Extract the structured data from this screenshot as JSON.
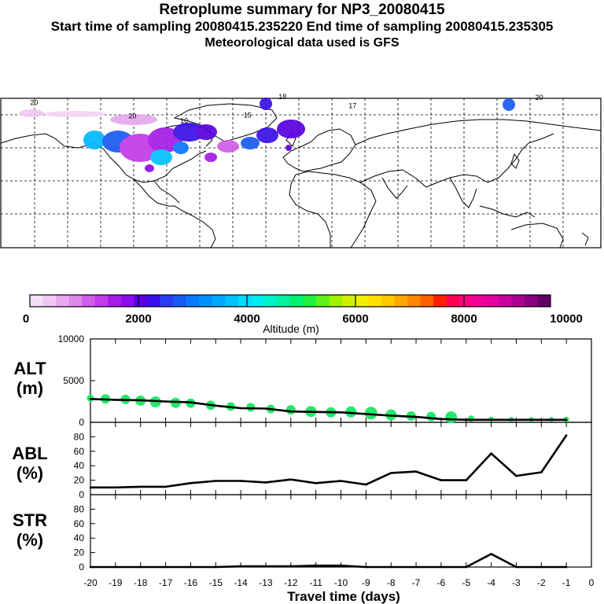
{
  "header": {
    "title": "Retroplume summary for NP3_20080415",
    "sampling": "Start time of sampling 20080415.235220     End time of sampling 20080415.235305",
    "met": "Meteorological data used is GFS"
  },
  "colors": {
    "line": "#000000",
    "alt_markers": "#22e86a",
    "colorbar": [
      "#f6e0f8",
      "#efc8f3",
      "#e6a8ee",
      "#dd88ea",
      "#cf5ee8",
      "#c23be8",
      "#a51ce6",
      "#8a0ce8",
      "#5a00e0",
      "#3a10e8",
      "#2a3cf0",
      "#1a5af0",
      "#0a78ff",
      "#0090ff",
      "#00a8ff",
      "#00c0ff",
      "#00dcff",
      "#00ecf0",
      "#00f0c8",
      "#00f0a0",
      "#00f070",
      "#20f040",
      "#60f020",
      "#a0f000",
      "#d0f000",
      "#f0f000",
      "#ffe000",
      "#ffc800",
      "#ffa800",
      "#ff8800",
      "#ff6000",
      "#ff2000",
      "#ff0050",
      "#ff0080",
      "#f00098",
      "#e000a0",
      "#c8009c",
      "#a80090",
      "#880080",
      "#600060"
    ]
  },
  "colorbar": {
    "label": "Altitude (m)",
    "ticks": [
      "0",
      "2000",
      "4000",
      "6000",
      "8000",
      "10000"
    ]
  },
  "map_labels": [
    {
      "text": "20",
      "lon": -160,
      "lat": 82
    },
    {
      "text": "20",
      "lon": -101,
      "lat": 66
    },
    {
      "text": "20",
      "lon": 143,
      "lat": 88
    },
    {
      "text": "18",
      "lon": -11,
      "lat": 89
    },
    {
      "text": "17",
      "lon": 31,
      "lat": 78
    },
    {
      "text": "15",
      "lon": -32,
      "lat": 67
    },
    {
      "text": "10",
      "lon": -70,
      "lat": 60
    }
  ],
  "panels": {
    "alt": {
      "label1": "ALT",
      "label2": "(m)"
    },
    "abl": {
      "label1": "ABL",
      "label2": "(%)"
    },
    "str": {
      "label1": "STR",
      "label2": "(%)"
    },
    "xlabel": "Travel time (days)"
  },
  "chart_data": [
    {
      "type": "line",
      "name": "ALT",
      "title": "Retroplume summary for NP3_20080415",
      "ylabel": "ALT (m)",
      "ylim": [
        0,
        10000
      ],
      "yticks": [
        "10000",
        "5000",
        "0"
      ],
      "xlim": [
        -20,
        0
      ],
      "xticks": [
        "-20",
        "-19",
        "-18",
        "-17",
        "-16",
        "-15",
        "-14",
        "-13",
        "-12",
        "-11",
        "-10",
        "-9",
        "-8",
        "-7",
        "-6",
        "-5",
        "-4",
        "-3",
        "-2",
        "-1",
        "0"
      ],
      "x": [
        -20,
        -19,
        -18,
        -17,
        -16,
        -15,
        -14,
        -13,
        -12,
        -11,
        -10,
        -9,
        -8,
        -7,
        -6,
        -5,
        -4,
        -3,
        -2,
        -1
      ],
      "values": [
        2800,
        2700,
        2650,
        2500,
        2400,
        2000,
        1700,
        1650,
        1300,
        1250,
        1200,
        1000,
        800,
        650,
        400,
        300,
        300,
        300,
        300,
        300
      ],
      "markers_x": [
        -20,
        -19.4,
        -18.6,
        -18,
        -17.4,
        -16.6,
        -16,
        -15.2,
        -14.4,
        -13.6,
        -12.8,
        -12,
        -11.2,
        -10.4,
        -9.6,
        -8.8,
        -8,
        -7.2,
        -6.4,
        -5.6,
        -4.8,
        -4,
        -3.2,
        -2.4,
        -1.6,
        -1
      ],
      "markers_y": [
        2900,
        2800,
        2750,
        2600,
        2450,
        2350,
        2300,
        2050,
        1900,
        1800,
        1600,
        1500,
        1300,
        1200,
        1250,
        1100,
        900,
        750,
        700,
        600,
        450,
        400,
        350,
        350,
        350,
        350
      ],
      "markers_r": [
        4.5,
        6,
        6,
        6.5,
        7,
        6.5,
        6,
        6,
        5.5,
        5.5,
        5.5,
        6,
        7,
        6.5,
        7,
        8,
        7,
        6,
        6,
        7.5,
        4,
        3,
        3,
        3,
        3,
        3.5
      ]
    },
    {
      "type": "line",
      "name": "ABL",
      "ylabel": "ABL (%)",
      "ylim": [
        0,
        100
      ],
      "yticks": [
        "80",
        "60",
        "40",
        "20",
        "0"
      ],
      "x": [
        -20,
        -19,
        -18,
        -17,
        -16,
        -15,
        -14,
        -13,
        -12,
        -11,
        -10,
        -9,
        -8,
        -7,
        -6,
        -5,
        -4,
        -3,
        -2,
        -1
      ],
      "values": [
        10,
        10,
        11,
        11,
        16,
        19,
        19,
        17,
        21,
        16,
        19,
        14,
        30,
        32,
        20,
        20,
        57,
        26,
        31,
        82
      ]
    },
    {
      "type": "line",
      "name": "STR",
      "ylabel": "STR (%)",
      "ylim": [
        0,
        100
      ],
      "yticks": [
        "80",
        "60",
        "40",
        "20",
        "0"
      ],
      "xlabel": "Travel time (days)",
      "x": [
        -20,
        -19,
        -18,
        -17,
        -16,
        -15,
        -14,
        -13,
        -12,
        -11,
        -10,
        -9,
        -8,
        -7,
        -6,
        -5,
        -4,
        -3,
        -2,
        -1
      ],
      "values": [
        0,
        0,
        0,
        0,
        0,
        0,
        1,
        1,
        1,
        2,
        2,
        0,
        0,
        0,
        0,
        0,
        18,
        0,
        0,
        0
      ]
    }
  ]
}
